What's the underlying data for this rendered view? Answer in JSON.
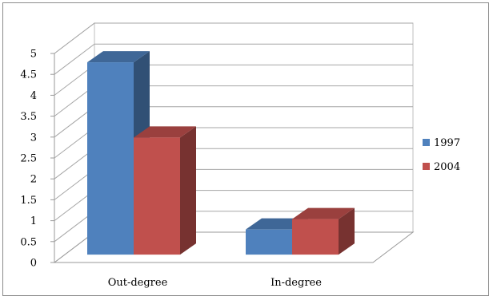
{
  "chart_data": {
    "type": "bar",
    "style": "3d-clustered-column",
    "categories": [
      "Out-degree",
      "In-degree"
    ],
    "series": [
      {
        "name": "1997",
        "values": [
          4.6,
          0.6
        ],
        "color": "#4f81bd"
      },
      {
        "name": "2004",
        "values": [
          2.8,
          0.85
        ],
        "color": "#c0504d"
      }
    ],
    "y_ticks": [
      "0",
      "0.5",
      "1",
      "1.5",
      "2",
      "2.5",
      "3",
      "3.5",
      "4",
      "4.5",
      "5"
    ],
    "ylim": [
      0,
      5
    ],
    "grid": true,
    "legend_position": "right"
  }
}
